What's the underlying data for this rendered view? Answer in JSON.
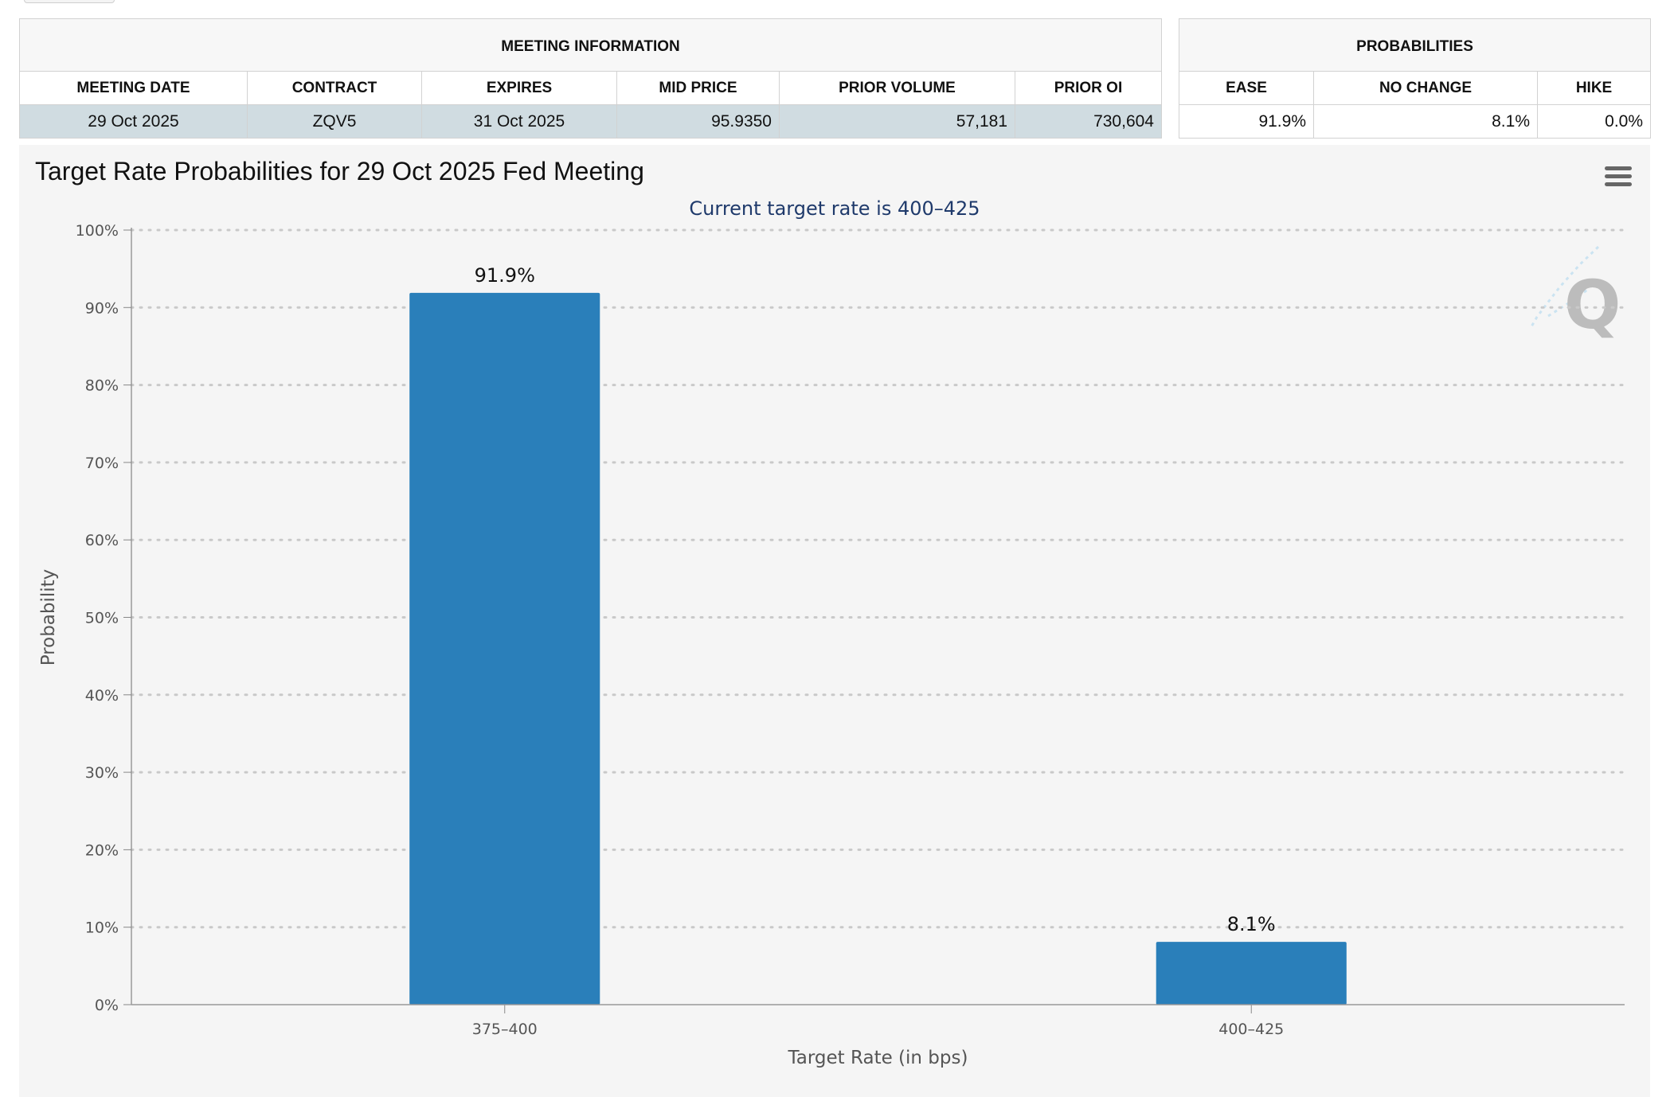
{
  "meeting_info": {
    "caption": "MEETING INFORMATION",
    "headers": [
      "MEETING DATE",
      "CONTRACT",
      "EXPIRES",
      "MID PRICE",
      "PRIOR VOLUME",
      "PRIOR OI"
    ],
    "row": [
      "29 Oct 2025",
      "ZQV5",
      "31 Oct 2025",
      "95.9350",
      "57,181",
      "730,604"
    ]
  },
  "probabilities": {
    "caption": "PROBABILITIES",
    "headers": [
      "EASE",
      "NO CHANGE",
      "HIKE"
    ],
    "row": [
      "91.9%",
      "8.1%",
      "0.0%"
    ]
  },
  "colors": {
    "bar": "#2a7fba",
    "subtitle": "#1f3a6b",
    "row_highlight": "#d0dce1",
    "panel_bg": "#f5f5f5"
  },
  "icons": {
    "menu": "hamburger-menu-icon",
    "watermark": "q-logo-watermark"
  },
  "chart_data": {
    "type": "bar",
    "title": "Target Rate Probabilities for 29 Oct 2025 Fed Meeting",
    "subtitle": "Current target rate is 400–425",
    "categories": [
      "375–400",
      "400–425"
    ],
    "values": [
      91.9,
      8.1
    ],
    "data_labels": [
      "91.9%",
      "8.1%"
    ],
    "xlabel": "Target Rate (in bps)",
    "ylabel": "Probability",
    "ylim": [
      0,
      100
    ],
    "yticks": [
      "0%",
      "10%",
      "20%",
      "30%",
      "40%",
      "50%",
      "60%",
      "70%",
      "80%",
      "90%",
      "100%"
    ],
    "grid": "horizontal dotted",
    "legend": "none"
  }
}
